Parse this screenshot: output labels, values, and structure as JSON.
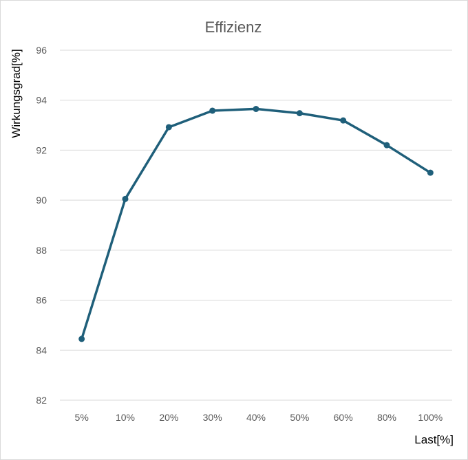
{
  "chart_data": {
    "type": "line",
    "title": "Effizienz",
    "xlabel": "Last[%]",
    "ylabel": "Wirkungsgrad[%]",
    "categories": [
      "5%",
      "10%",
      "20%",
      "30%",
      "40%",
      "50%",
      "60%",
      "80%",
      "100%"
    ],
    "series": [
      {
        "values": [
          84.45,
          90.05,
          92.92,
          93.58,
          93.65,
          93.48,
          93.19,
          92.2,
          91.1
        ],
        "color": "#1f5f7a"
      }
    ],
    "ylim": [
      82,
      96
    ],
    "yticks": [
      "82",
      "84",
      "86",
      "88",
      "90",
      "92",
      "94",
      "96"
    ],
    "grid": true,
    "legend": "none"
  }
}
